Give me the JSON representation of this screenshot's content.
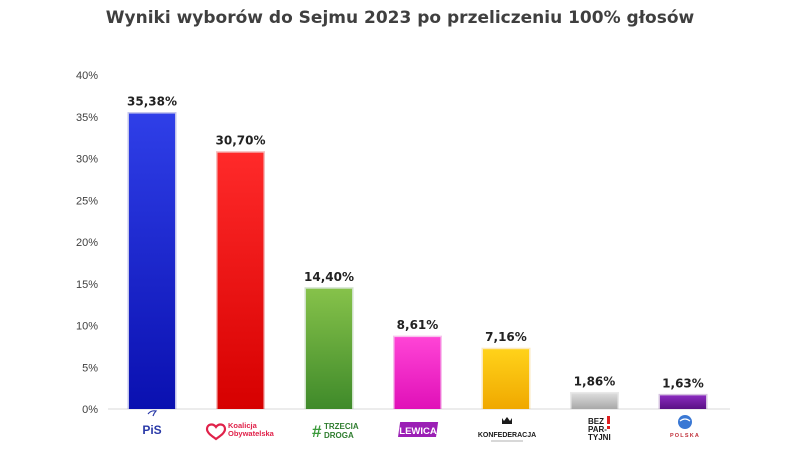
{
  "chart_data": {
    "type": "bar",
    "title": "Wyniki wyborów do Sejmu 2023 po przeliczeniu 100% głosów",
    "xlabel": "",
    "ylabel": "",
    "ylim": [
      0,
      40
    ],
    "yticks": [
      0,
      5,
      10,
      15,
      20,
      25,
      30,
      35,
      40
    ],
    "ytick_labels": [
      "0%",
      "5%",
      "10%",
      "15%",
      "20%",
      "25%",
      "30%",
      "35%",
      "40%"
    ],
    "grid": false,
    "legend": "none",
    "categories": [
      "PiS",
      "Koalicja Obywatelska",
      "Trzecia Droga",
      "Lewica",
      "Konfederacja",
      "Bezpartyjni Samorządowcy",
      "Polska Jest Jedna"
    ],
    "values": [
      35.38,
      30.7,
      14.4,
      8.61,
      7.16,
      1.86,
      1.63
    ],
    "data_labels": [
      "35,38%",
      "30,70%",
      "14,40%",
      "8,61%",
      "7,16%",
      "1,86%",
      "1,63%"
    ],
    "colors": [
      [
        "#2f3fe8",
        "#0a10b0"
      ],
      [
        "#ff2a2a",
        "#d60000"
      ],
      [
        "#86c24a",
        "#3f8a2a"
      ],
      [
        "#ff44d6",
        "#e010b8"
      ],
      [
        "#ffd21a",
        "#f0a800"
      ],
      [
        "#dcdcdc",
        "#a8a8a8"
      ],
      [
        "#8a2bbf",
        "#5a1085"
      ]
    ]
  },
  "logos": {
    "pis": {
      "main": "PiS"
    },
    "ko": {
      "line1": "Koalicja",
      "line2": "Obywatelska"
    },
    "td": {
      "hash": "#",
      "line1": "TRZECIA",
      "line2": "DROGA"
    },
    "lewica": {
      "text": "LEWICA"
    },
    "konf": {
      "text": "KONFEDERACJA"
    },
    "bezp": {
      "line1": "BEZ",
      "line2": "PAR-",
      "line3": "TYJNI"
    },
    "pjj": {
      "text": "POLSKA"
    }
  }
}
